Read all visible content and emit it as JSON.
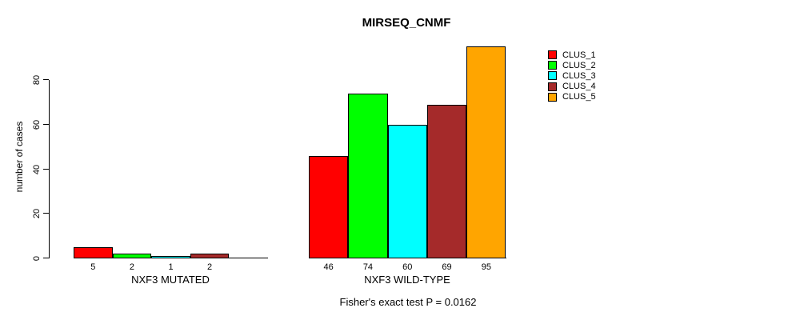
{
  "chart_data": {
    "type": "bar",
    "title": "MIRSEQ_CNMF",
    "ylabel": "number of cases",
    "xlabel": "",
    "yticks": [
      0,
      20,
      40,
      60,
      80
    ],
    "ylim": [
      0,
      95
    ],
    "grid": false,
    "legend_position": "right",
    "categories": [
      "NXF3 MUTATED",
      "NXF3 WILD-TYPE"
    ],
    "series": [
      {
        "name": "CLUS_1",
        "color": "#FF0000",
        "values": [
          5,
          46
        ]
      },
      {
        "name": "CLUS_2",
        "color": "#00FF00",
        "values": [
          2,
          74
        ]
      },
      {
        "name": "CLUS_3",
        "color": "#00FFFF",
        "values": [
          1,
          60
        ]
      },
      {
        "name": "CLUS_4",
        "color": "#A52A2A",
        "values": [
          2,
          69
        ]
      },
      {
        "name": "CLUS_5",
        "color": "#FFA500",
        "values": [
          0,
          95
        ]
      }
    ],
    "bar_value_labels": [
      [
        "5",
        "2",
        "1",
        "2",
        ""
      ],
      [
        "46",
        "74",
        "60",
        "69",
        "95"
      ]
    ],
    "annotation": "Fisher's exact test P = 0.0162",
    "axis_color": "#000000",
    "bar_border_color": "#000000"
  }
}
